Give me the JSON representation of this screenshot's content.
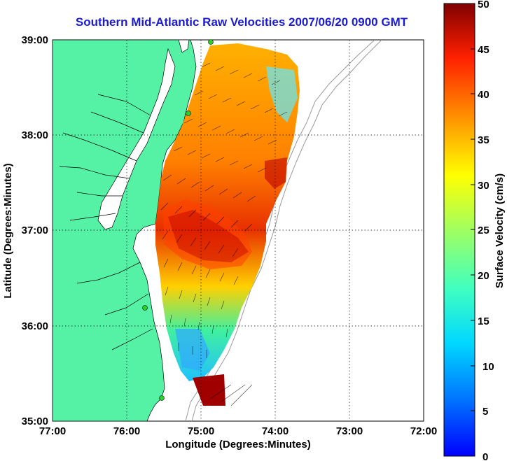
{
  "title": "Southern Mid-Atlantic Raw Velocities 2007/06/20 0900 GMT",
  "x_axis": {
    "label": "Longitude (Degrees:Minutes)",
    "ticks": [
      "77:00",
      "76:00",
      "75:00",
      "74:00",
      "73:00",
      "72:00"
    ]
  },
  "y_axis": {
    "label": "Latitude (Degrees:Minutes)",
    "ticks": [
      "39:00",
      "38:00",
      "37:00",
      "36:00",
      "35:00"
    ]
  },
  "colorbar": {
    "label": "Surface Velocity (cm/s)",
    "ticks": [
      "50",
      "45",
      "40",
      "35",
      "30",
      "25",
      "20",
      "15",
      "10",
      "5",
      "0"
    ],
    "min": 0,
    "max": 50,
    "colormap": "jet"
  },
  "colors": {
    "title": "#1b1bd6",
    "land": "#55f2a6",
    "station_marker": "#2bd12b"
  },
  "grid": "dotted"
}
